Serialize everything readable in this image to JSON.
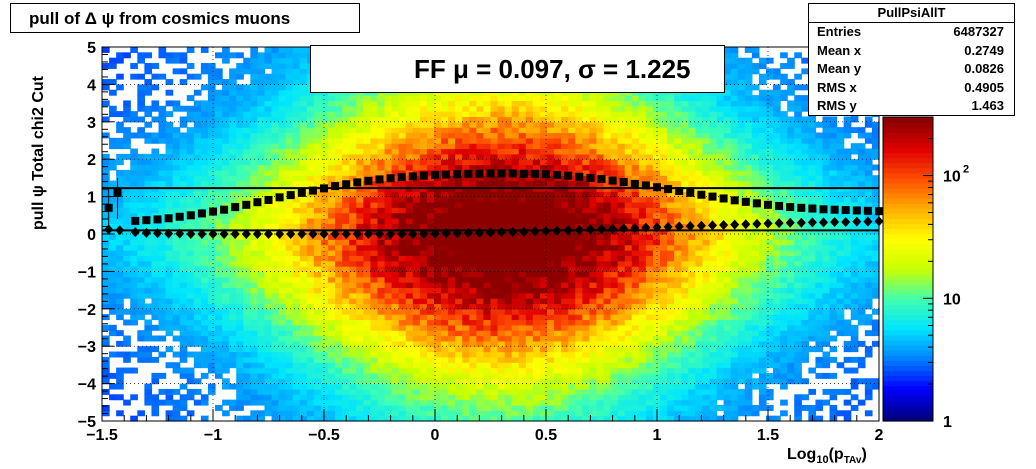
{
  "title": "pull of Δ ψ from cosmics muons",
  "ylabel": "pull ψ   Total chi2 Cut",
  "xlabel_main": "Log",
  "xlabel_sub": "10",
  "xlabel_arg": "(p",
  "xlabel_argsub": "TAv",
  "xlabel_end": ")",
  "legend": {
    "label": "FF μ =  0.097, σ =   1.225"
  },
  "stats": {
    "name": "PullPsiAllT",
    "rows": [
      {
        "key": "Entries",
        "value": "6487327"
      },
      {
        "key": "Mean x",
        "value": "0.2749"
      },
      {
        "key": "Mean y",
        "value": "0.0826"
      },
      {
        "key": "RMS x",
        "value": "0.4905"
      },
      {
        "key": "RMS y",
        "value": "1.463"
      }
    ]
  },
  "colors": {
    "frame": "#000000",
    "palette": [
      "#00007f",
      "#0000ff",
      "#0080ff",
      "#00e5ff",
      "#40ffb0",
      "#c8ff00",
      "#ffff00",
      "#ffb000",
      "#ff5000",
      "#e00000",
      "#8c0000"
    ]
  },
  "chart_data": {
    "type": "heatmap",
    "xlim": [
      -1.5,
      2
    ],
    "ylim": [
      -5,
      5
    ],
    "x_ticks": [
      "−1.5",
      "−1",
      "−0.5",
      "0",
      "0.5",
      "1",
      "1.5",
      "2"
    ],
    "y_ticks": [
      "5",
      "4",
      "3",
      "2",
      "1",
      "0",
      "−1",
      "−2",
      "−3",
      "−4",
      "−5"
    ],
    "colorbar": {
      "scale": "log",
      "range": [
        1,
        300
      ],
      "tick_labels": [
        "1",
        "10",
        "10^2"
      ]
    },
    "series": [
      {
        "name": "sigma",
        "marker": "square",
        "points": [
          [
            -1.47,
            0.7
          ],
          [
            -1.43,
            1.1
          ],
          [
            -1.35,
            0.35
          ],
          [
            -1.3,
            0.37
          ],
          [
            -1.25,
            0.39
          ],
          [
            -1.2,
            0.42
          ],
          [
            -1.15,
            0.46
          ],
          [
            -1.1,
            0.5
          ],
          [
            -1.05,
            0.55
          ],
          [
            -1.0,
            0.6
          ],
          [
            -0.95,
            0.65
          ],
          [
            -0.9,
            0.72
          ],
          [
            -0.85,
            0.78
          ],
          [
            -0.8,
            0.85
          ],
          [
            -0.75,
            0.91
          ],
          [
            -0.7,
            0.98
          ],
          [
            -0.65,
            1.04
          ],
          [
            -0.6,
            1.1
          ],
          [
            -0.55,
            1.16
          ],
          [
            -0.5,
            1.22
          ],
          [
            -0.45,
            1.28
          ],
          [
            -0.4,
            1.33
          ],
          [
            -0.35,
            1.38
          ],
          [
            -0.3,
            1.42
          ],
          [
            -0.25,
            1.46
          ],
          [
            -0.2,
            1.49
          ],
          [
            -0.15,
            1.52
          ],
          [
            -0.1,
            1.54
          ],
          [
            -0.05,
            1.56
          ],
          [
            0.0,
            1.58
          ],
          [
            0.05,
            1.59
          ],
          [
            0.1,
            1.6
          ],
          [
            0.15,
            1.61
          ],
          [
            0.2,
            1.61
          ],
          [
            0.25,
            1.62
          ],
          [
            0.3,
            1.62
          ],
          [
            0.35,
            1.62
          ],
          [
            0.4,
            1.61
          ],
          [
            0.45,
            1.61
          ],
          [
            0.5,
            1.6
          ],
          [
            0.55,
            1.58
          ],
          [
            0.6,
            1.56
          ],
          [
            0.65,
            1.53
          ],
          [
            0.7,
            1.5
          ],
          [
            0.75,
            1.47
          ],
          [
            0.8,
            1.43
          ],
          [
            0.85,
            1.39
          ],
          [
            0.9,
            1.34
          ],
          [
            0.95,
            1.3
          ],
          [
            1.0,
            1.25
          ],
          [
            1.05,
            1.2
          ],
          [
            1.1,
            1.15
          ],
          [
            1.15,
            1.1
          ],
          [
            1.2,
            1.05
          ],
          [
            1.25,
            1.0
          ],
          [
            1.3,
            0.95
          ],
          [
            1.35,
            0.9
          ],
          [
            1.4,
            0.86
          ],
          [
            1.45,
            0.82
          ],
          [
            1.5,
            0.78
          ],
          [
            1.55,
            0.75
          ],
          [
            1.6,
            0.72
          ],
          [
            1.65,
            0.7
          ],
          [
            1.7,
            0.68
          ],
          [
            1.75,
            0.66
          ],
          [
            1.8,
            0.65
          ],
          [
            1.85,
            0.64
          ],
          [
            1.9,
            0.63
          ],
          [
            1.95,
            0.62
          ],
          [
            2.0,
            0.61
          ]
        ]
      },
      {
        "name": "mean",
        "marker": "diamond",
        "points": [
          [
            -1.47,
            0.12
          ],
          [
            -1.42,
            0.1
          ],
          [
            -1.35,
            0.05
          ],
          [
            -1.3,
            0.03
          ],
          [
            -1.25,
            0.02
          ],
          [
            -1.2,
            0.01
          ],
          [
            -1.15,
            0.01
          ],
          [
            -1.1,
            0.0
          ],
          [
            -1.05,
            0.0
          ],
          [
            -1.0,
            0.0
          ],
          [
            -0.95,
            0.0
          ],
          [
            -0.9,
            0.0
          ],
          [
            -0.85,
            0.0
          ],
          [
            -0.8,
            0.0
          ],
          [
            -0.75,
            0.0
          ],
          [
            -0.7,
            0.0
          ],
          [
            -0.65,
            0.0
          ],
          [
            -0.6,
            0.0
          ],
          [
            -0.55,
            0.0
          ],
          [
            -0.5,
            0.0
          ],
          [
            -0.45,
            0.0
          ],
          [
            -0.4,
            0.0
          ],
          [
            -0.35,
            0.0
          ],
          [
            -0.3,
            0.0
          ],
          [
            -0.25,
            0.0
          ],
          [
            -0.2,
            0.0
          ],
          [
            -0.15,
            0.0
          ],
          [
            -0.1,
            0.0
          ],
          [
            -0.05,
            0.01
          ],
          [
            0.0,
            0.01
          ],
          [
            0.05,
            0.02
          ],
          [
            0.1,
            0.02
          ],
          [
            0.15,
            0.03
          ],
          [
            0.2,
            0.03
          ],
          [
            0.25,
            0.04
          ],
          [
            0.3,
            0.05
          ],
          [
            0.35,
            0.05
          ],
          [
            0.4,
            0.06
          ],
          [
            0.45,
            0.07
          ],
          [
            0.5,
            0.08
          ],
          [
            0.55,
            0.09
          ],
          [
            0.6,
            0.1
          ],
          [
            0.65,
            0.11
          ],
          [
            0.7,
            0.12
          ],
          [
            0.75,
            0.13
          ],
          [
            0.8,
            0.14
          ],
          [
            0.85,
            0.15
          ],
          [
            0.9,
            0.16
          ],
          [
            0.95,
            0.17
          ],
          [
            1.0,
            0.18
          ],
          [
            1.05,
            0.19
          ],
          [
            1.1,
            0.2
          ],
          [
            1.15,
            0.21
          ],
          [
            1.2,
            0.22
          ],
          [
            1.25,
            0.23
          ],
          [
            1.3,
            0.24
          ],
          [
            1.35,
            0.25
          ],
          [
            1.4,
            0.26
          ],
          [
            1.45,
            0.27
          ],
          [
            1.5,
            0.28
          ],
          [
            1.55,
            0.29
          ],
          [
            1.6,
            0.3
          ],
          [
            1.65,
            0.3
          ],
          [
            1.7,
            0.31
          ],
          [
            1.75,
            0.31
          ],
          [
            1.8,
            0.32
          ],
          [
            1.85,
            0.32
          ],
          [
            1.9,
            0.33
          ],
          [
            1.95,
            0.33
          ],
          [
            2.0,
            0.34
          ]
        ]
      }
    ],
    "reference_lines": [
      {
        "name": "fit-sigma",
        "y": 1.225
      },
      {
        "name": "fit-mean",
        "y": 0.097
      }
    ]
  }
}
